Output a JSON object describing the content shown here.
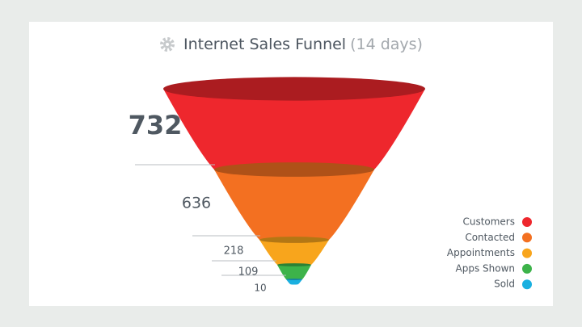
{
  "chart_data": {
    "type": "funnel",
    "title": "Internet Sales Funnel",
    "subtitle": "(14 days)",
    "categories": [
      "Customers",
      "Contacted",
      "Appointments",
      "Apps Shown",
      "Sold"
    ],
    "values": [
      732,
      636,
      218,
      109,
      10
    ],
    "colors": [
      "#ee272d",
      "#f37021",
      "#f8a51c",
      "#3db34a",
      "#1ab0e0"
    ],
    "legend": "right"
  }
}
